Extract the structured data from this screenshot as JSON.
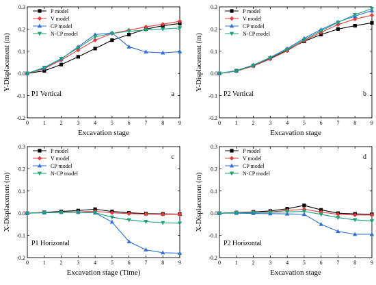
{
  "colors": {
    "P model": "#000000",
    "V model": "#e83a3a",
    "CP model": "#2e6fe0",
    "N-CP model": "#1aa37a"
  },
  "markers": {
    "P model": "square",
    "V model": "diamond",
    "CP model": "triangle-up",
    "N-CP model": "triangle-down"
  },
  "chart_data": [
    {
      "type": "line",
      "panel": "top-left",
      "ylabel": "Y-Displacement (m)",
      "xlabel": "Excavation stage",
      "annotation": "P1 Vertical",
      "letter": "a",
      "xlim": [
        0,
        9
      ],
      "ylim": [
        -0.2,
        0.3
      ],
      "xticks": [
        "0",
        "1",
        "2",
        "3",
        "4",
        "5",
        "6",
        "7",
        "8",
        "9"
      ],
      "yticks": [
        "-0.2",
        "-0.1",
        "0.0",
        "0.1",
        "0.2",
        "0.3"
      ],
      "legend": "top-left",
      "x": [
        0,
        1,
        2,
        3,
        4,
        5,
        6,
        7,
        8,
        9
      ],
      "series": [
        {
          "name": "P model",
          "values": [
            0.0,
            0.012,
            0.04,
            0.075,
            0.112,
            0.15,
            0.175,
            0.2,
            0.215,
            0.225
          ]
        },
        {
          "name": "V model",
          "values": [
            0.0,
            0.022,
            0.06,
            0.105,
            0.15,
            0.18,
            0.195,
            0.21,
            0.222,
            0.235
          ]
        },
        {
          "name": "CP model",
          "values": [
            0.0,
            0.025,
            0.065,
            0.12,
            0.175,
            0.183,
            0.12,
            0.097,
            0.093,
            0.098
          ]
        },
        {
          "name": "N-CP model",
          "values": [
            0.0,
            0.027,
            0.067,
            0.115,
            0.165,
            0.18,
            0.19,
            0.196,
            0.2,
            0.205
          ]
        }
      ]
    },
    {
      "type": "line",
      "panel": "top-right",
      "ylabel": "Y-Displacement (m)",
      "xlabel": "Excavation stage",
      "annotation": "P2 Vertical",
      "letter": "b",
      "xlim": [
        0,
        9
      ],
      "ylim": [
        -0.2,
        0.3
      ],
      "xticks": [
        "0",
        "1",
        "2",
        "3",
        "4",
        "5",
        "6",
        "7",
        "8",
        "9"
      ],
      "yticks": [
        "-0.2",
        "-0.1",
        "0.0",
        "0.1",
        "0.2",
        "0.3"
      ],
      "legend": "top-left",
      "x": [
        0,
        1,
        2,
        3,
        4,
        5,
        6,
        7,
        8,
        9
      ],
      "series": [
        {
          "name": "P model",
          "values": [
            0.0,
            0.012,
            0.035,
            0.068,
            0.105,
            0.145,
            0.175,
            0.2,
            0.215,
            0.228
          ]
        },
        {
          "name": "V model",
          "values": [
            0.0,
            0.01,
            0.033,
            0.065,
            0.102,
            0.148,
            0.185,
            0.22,
            0.245,
            0.262
          ]
        },
        {
          "name": "CP model",
          "values": [
            0.0,
            0.013,
            0.038,
            0.072,
            0.112,
            0.158,
            0.198,
            0.232,
            0.258,
            0.283
          ]
        },
        {
          "name": "N-CP model",
          "values": [
            0.0,
            0.011,
            0.036,
            0.07,
            0.108,
            0.152,
            0.192,
            0.23,
            0.265,
            0.292
          ]
        }
      ]
    },
    {
      "type": "line",
      "panel": "bottom-left",
      "ylabel": "X-Displacement (m)",
      "xlabel": "Excavation stage (Time)",
      "annotation": "P1 Horizontal",
      "letter": "c",
      "xlim": [
        0,
        9
      ],
      "ylim": [
        -0.2,
        0.3
      ],
      "xticks": [
        "0",
        "1",
        "2",
        "3",
        "4",
        "5",
        "6",
        "7",
        "8",
        "9"
      ],
      "yticks": [
        "-0.2",
        "-0.1",
        "0.0",
        "0.1",
        "0.2",
        "0.3"
      ],
      "legend": "top-left",
      "x": [
        0,
        1,
        2,
        3,
        4,
        5,
        6,
        7,
        8,
        9
      ],
      "series": [
        {
          "name": "P model",
          "values": [
            0.0,
            0.004,
            0.008,
            0.012,
            0.018,
            0.008,
            0.002,
            -0.002,
            -0.003,
            -0.004
          ]
        },
        {
          "name": "V model",
          "values": [
            0.0,
            0.003,
            0.005,
            0.006,
            0.008,
            0.002,
            -0.002,
            -0.004,
            -0.005,
            -0.005
          ]
        },
        {
          "name": "CP model",
          "values": [
            0.0,
            0.002,
            0.004,
            0.004,
            0.002,
            -0.04,
            -0.128,
            -0.165,
            -0.178,
            -0.18
          ]
        },
        {
          "name": "N-CP model",
          "values": [
            0.0,
            0.003,
            0.004,
            0.004,
            0.002,
            -0.018,
            -0.03,
            -0.038,
            -0.043,
            -0.045
          ]
        }
      ]
    },
    {
      "type": "line",
      "panel": "bottom-right",
      "ylabel": "X-Displacement (m)",
      "xlabel": "Excavation stage",
      "annotation": "P2 Horizontal",
      "letter": "d",
      "xlim": [
        0,
        9
      ],
      "ylim": [
        -0.2,
        0.3
      ],
      "xticks": [
        "0",
        "1",
        "2",
        "3",
        "4",
        "5",
        "6",
        "7",
        "8",
        "9"
      ],
      "yticks": [
        "-0.2",
        "-0.1",
        "0.0",
        "0.1",
        "0.2",
        "0.3"
      ],
      "legend": "top-left",
      "x": [
        0,
        1,
        2,
        3,
        4,
        5,
        6,
        7,
        8,
        9
      ],
      "series": [
        {
          "name": "P model",
          "values": [
            0.0,
            0.003,
            0.006,
            0.01,
            0.02,
            0.035,
            0.015,
            0.0,
            -0.003,
            -0.005
          ]
        },
        {
          "name": "V model",
          "values": [
            0.0,
            0.002,
            0.004,
            0.006,
            0.012,
            0.018,
            0.005,
            -0.005,
            -0.008,
            -0.008
          ]
        },
        {
          "name": "CP model",
          "values": [
            0.0,
            0.0,
            -0.001,
            -0.002,
            -0.003,
            -0.005,
            -0.05,
            -0.082,
            -0.095,
            -0.095
          ]
        },
        {
          "name": "N-CP model",
          "values": [
            0.0,
            0.002,
            0.003,
            0.004,
            0.006,
            0.008,
            -0.005,
            -0.02,
            -0.03,
            -0.035
          ]
        }
      ]
    }
  ]
}
